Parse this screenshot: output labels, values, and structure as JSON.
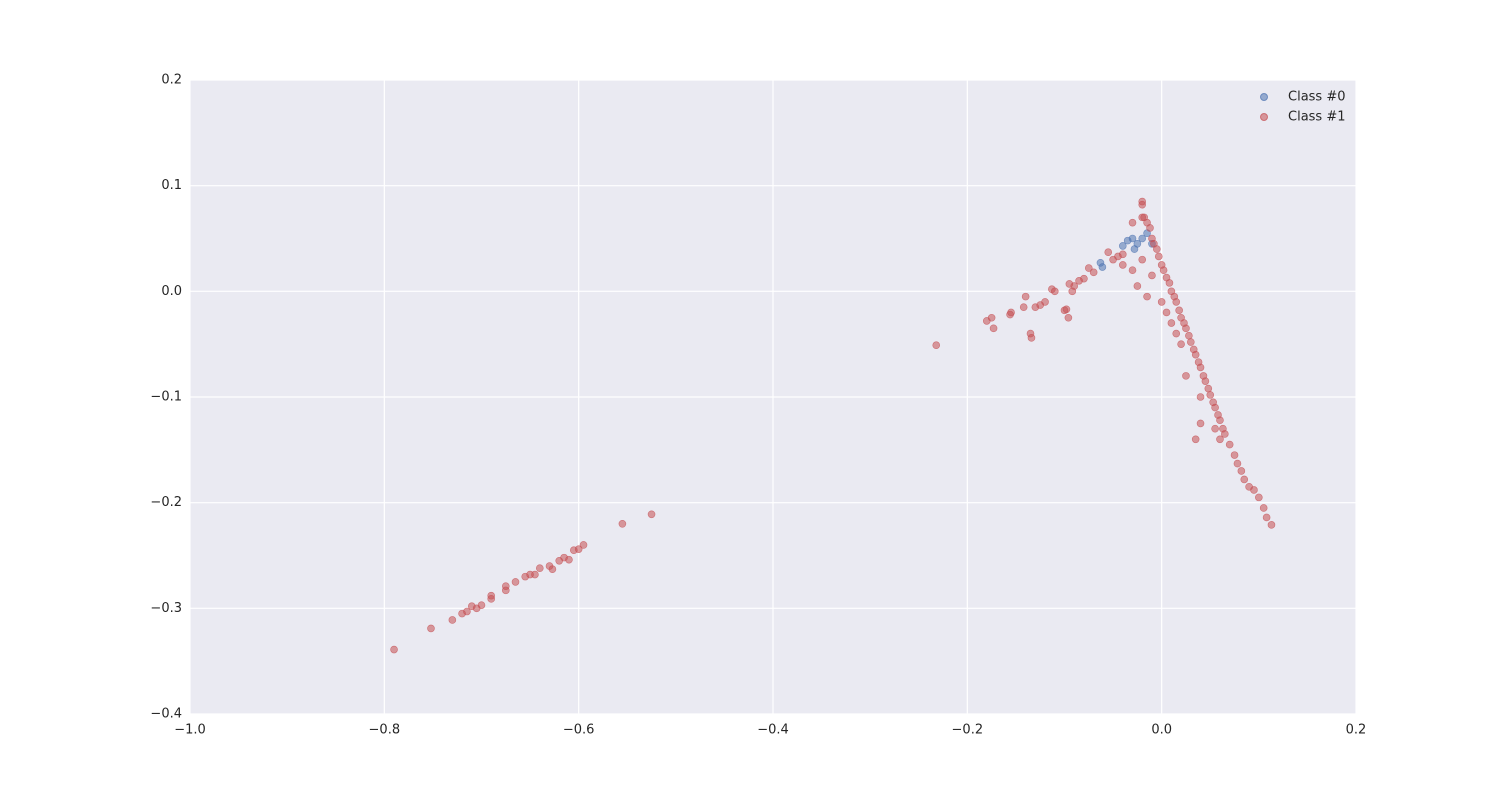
{
  "chart_data": {
    "type": "scatter",
    "xlim": [
      -1.0,
      0.2
    ],
    "ylim": [
      -0.4,
      0.2
    ],
    "xticks": [
      {
        "value": -1.0,
        "label": "−1.0"
      },
      {
        "value": -0.8,
        "label": "−0.8"
      },
      {
        "value": -0.6,
        "label": "−0.6"
      },
      {
        "value": -0.4,
        "label": "−0.4"
      },
      {
        "value": -0.2,
        "label": "−0.2"
      },
      {
        "value": 0,
        "label": "0.0"
      },
      0.2
    ],
    "yticks": [
      {
        "value": -0.4,
        "label": "−0.4"
      },
      {
        "value": -0.3,
        "label": "−0.3"
      },
      {
        "value": -0.2,
        "label": "−0.2"
      },
      {
        "value": -0.1,
        "label": "−0.1"
      },
      {
        "value": 0,
        "label": "0.0"
      },
      0.1,
      0.2
    ],
    "grid": true,
    "legend": "upper right",
    "series": [
      {
        "name": "Class #0",
        "color": "#4c72b0",
        "x": [
          -0.063,
          -0.061,
          -0.04,
          -0.035,
          -0.03,
          -0.025,
          -0.02,
          -0.015,
          -0.028,
          -0.01
        ],
        "y": [
          0.027,
          0.023,
          0.043,
          0.048,
          0.05,
          0.045,
          0.05,
          0.055,
          0.04,
          0.045
        ]
      },
      {
        "name": "Class #1",
        "color": "#c44e52",
        "x": [
          -0.02,
          -0.02,
          -0.018,
          -0.015,
          -0.012,
          -0.01,
          -0.008,
          -0.005,
          -0.003,
          0,
          0.002,
          0.005,
          0.008,
          0.01,
          0.013,
          0.015,
          0.018,
          0.02,
          0.023,
          0.025,
          0.028,
          0.03,
          0.033,
          0.035,
          0.038,
          0.04,
          0.043,
          0.045,
          0.048,
          0.05,
          0.053,
          0.055,
          0.058,
          0.06,
          0.063,
          0.065,
          0.07,
          0.075,
          0.078,
          0.082,
          0.085,
          0.09,
          0.095,
          0.1,
          0.105,
          0.108,
          0.113,
          0.01,
          0.02,
          0,
          0.035,
          0.04,
          0.04,
          0.025,
          -0.01,
          -0.02,
          -0.03,
          -0.025,
          -0.015,
          0.005,
          0.015,
          0.055,
          0.06,
          -0.04,
          -0.045,
          -0.05,
          -0.055,
          -0.07,
          -0.075,
          -0.08,
          -0.085,
          -0.09,
          -0.092,
          -0.095,
          -0.098,
          -0.1,
          -0.096,
          -0.11,
          -0.113,
          -0.12,
          -0.125,
          -0.13,
          -0.14,
          -0.142,
          -0.135,
          -0.134,
          -0.155,
          -0.156,
          -0.175,
          -0.18,
          -0.173,
          -0.232,
          -0.02,
          -0.03,
          -0.04,
          -0.79,
          -0.752,
          -0.73,
          -0.72,
          -0.715,
          -0.71,
          -0.705,
          -0.7,
          -0.69,
          -0.69,
          -0.675,
          -0.675,
          -0.665,
          -0.655,
          -0.65,
          -0.645,
          -0.64,
          -0.63,
          -0.627,
          -0.62,
          -0.615,
          -0.61,
          -0.605,
          -0.6,
          -0.595,
          -0.555,
          -0.525
        ],
        "y": [
          0.085,
          0.082,
          0.07,
          0.065,
          0.06,
          0.05,
          0.045,
          0.04,
          0.033,
          0.025,
          0.02,
          0.013,
          0.008,
          0.0,
          -0.005,
          -0.01,
          -0.018,
          -0.025,
          -0.03,
          -0.035,
          -0.042,
          -0.048,
          -0.055,
          -0.06,
          -0.067,
          -0.072,
          -0.08,
          -0.085,
          -0.092,
          -0.098,
          -0.105,
          -0.11,
          -0.117,
          -0.122,
          -0.13,
          -0.135,
          -0.145,
          -0.155,
          -0.163,
          -0.17,
          -0.178,
          -0.185,
          -0.188,
          -0.195,
          -0.205,
          -0.214,
          -0.221,
          -0.03,
          -0.05,
          -0.01,
          -0.14,
          -0.125,
          -0.1,
          -0.08,
          0.015,
          0.03,
          0.02,
          0.005,
          -0.005,
          -0.02,
          -0.04,
          -0.13,
          -0.14,
          0.035,
          0.033,
          0.03,
          0.037,
          0.018,
          0.022,
          0.012,
          0.01,
          0.005,
          0.0,
          0.007,
          -0.017,
          -0.018,
          -0.025,
          0.0,
          0.002,
          -0.01,
          -0.013,
          -0.015,
          -0.005,
          -0.015,
          -0.04,
          -0.044,
          -0.02,
          -0.022,
          -0.025,
          -0.028,
          -0.035,
          -0.051,
          0.07,
          0.065,
          0.025,
          -0.339,
          -0.319,
          -0.311,
          -0.305,
          -0.303,
          -0.298,
          -0.3,
          -0.297,
          -0.291,
          -0.288,
          -0.283,
          -0.279,
          -0.275,
          -0.27,
          -0.268,
          -0.268,
          -0.262,
          -0.26,
          -0.263,
          -0.255,
          -0.252,
          -0.254,
          -0.245,
          -0.244,
          -0.24,
          -0.22,
          -0.211
        ]
      }
    ]
  }
}
